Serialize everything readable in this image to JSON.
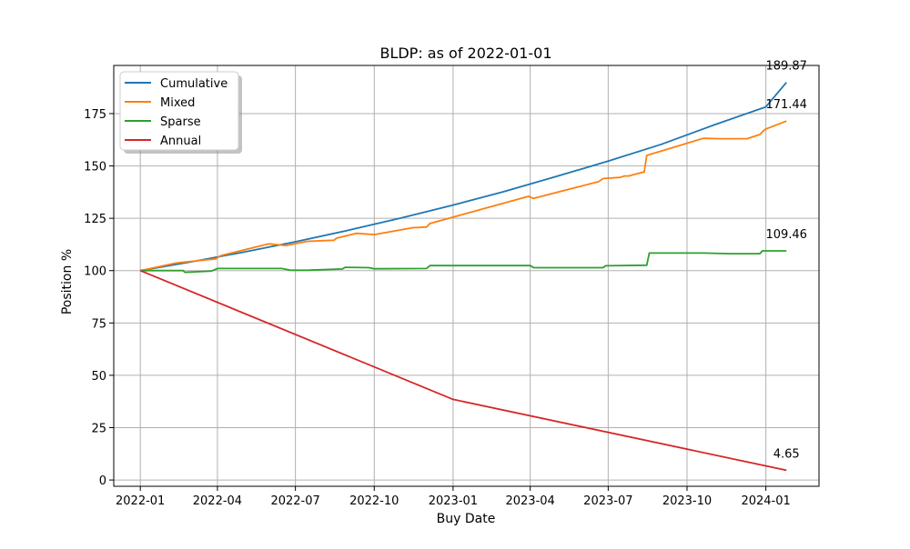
{
  "chart_data": {
    "type": "line",
    "title": "BLDP: as of 2022-01-01",
    "xlabel": "Buy Date",
    "ylabel": "Position %",
    "x_ticks": [
      "2022-01",
      "2022-04",
      "2022-07",
      "2022-10",
      "2023-01",
      "2023-04",
      "2023-07",
      "2023-10",
      "2024-01"
    ],
    "y_ticks": [
      0,
      25,
      50,
      75,
      100,
      125,
      150,
      175
    ],
    "xlim": [
      "2021-12-01",
      "2024-03-03"
    ],
    "ylim": [
      -3,
      198
    ],
    "grid": true,
    "legend": "top-left",
    "series": [
      {
        "name": "Cumulative",
        "color": "#1f77b4",
        "end_label": "189.87",
        "points": [
          [
            "2022-01-01",
            100
          ],
          [
            "2022-03-01",
            104.2
          ],
          [
            "2022-05-01",
            108.8
          ],
          [
            "2022-07-01",
            113.8
          ],
          [
            "2022-09-01",
            119.3
          ],
          [
            "2022-11-01",
            125.1
          ],
          [
            "2023-01-01",
            131.3
          ],
          [
            "2023-03-01",
            137.7
          ],
          [
            "2023-05-01",
            144.9
          ],
          [
            "2023-07-01",
            152.3
          ],
          [
            "2023-09-01",
            160.3
          ],
          [
            "2023-11-01",
            169.5
          ],
          [
            "2024-01-01",
            178.2
          ],
          [
            "2024-01-25",
            189.87
          ]
        ]
      },
      {
        "name": "Mixed",
        "color": "#ff7f0e",
        "end_label": "171.44",
        "points": [
          [
            "2022-01-01",
            100
          ],
          [
            "2022-02-10",
            103.5
          ],
          [
            "2022-02-20",
            104
          ],
          [
            "2022-03-30",
            105.6
          ],
          [
            "2022-04-05",
            107.2
          ],
          [
            "2022-05-31",
            112.8
          ],
          [
            "2022-06-20",
            112
          ],
          [
            "2022-07-15",
            114
          ],
          [
            "2022-08-15",
            114.5
          ],
          [
            "2022-08-18",
            115.5
          ],
          [
            "2022-09-10",
            117.8
          ],
          [
            "2022-10-01",
            117.2
          ],
          [
            "2022-11-15",
            120.5
          ],
          [
            "2022-12-01",
            120.8
          ],
          [
            "2022-12-05",
            122.5
          ],
          [
            "2023-03-30",
            135.5
          ],
          [
            "2023-04-05",
            134.5
          ],
          [
            "2023-06-20",
            142.5
          ],
          [
            "2023-06-25",
            144
          ],
          [
            "2023-07-15",
            144.5
          ],
          [
            "2023-07-20",
            145.2
          ],
          [
            "2023-07-25",
            145.2
          ],
          [
            "2023-08-10",
            147
          ],
          [
            "2023-08-12",
            147
          ],
          [
            "2023-08-15",
            155
          ],
          [
            "2023-10-20",
            163.2
          ],
          [
            "2023-11-10",
            163
          ],
          [
            "2023-12-10",
            163
          ],
          [
            "2023-12-25",
            165
          ],
          [
            "2023-12-31",
            167.5
          ],
          [
            "2024-01-25",
            171.44
          ]
        ]
      },
      {
        "name": "Sparse",
        "color": "#2ca02c",
        "end_label": "109.46",
        "points": [
          [
            "2022-01-01",
            100
          ],
          [
            "2022-02-20",
            100
          ],
          [
            "2022-02-22",
            99.2
          ],
          [
            "2022-03-25",
            99.8
          ],
          [
            "2022-04-01",
            101
          ],
          [
            "2022-06-15",
            101
          ],
          [
            "2022-06-25",
            100.2
          ],
          [
            "2022-07-15",
            100.2
          ],
          [
            "2022-08-25",
            100.8
          ],
          [
            "2022-08-28",
            101.6
          ],
          [
            "2022-09-25",
            101.4
          ],
          [
            "2022-10-01",
            100.9
          ],
          [
            "2022-12-01",
            101
          ],
          [
            "2022-12-05",
            102.4
          ],
          [
            "2023-04-01",
            102.4
          ],
          [
            "2023-04-05",
            101.4
          ],
          [
            "2023-06-25",
            101.4
          ],
          [
            "2023-06-28",
            102.3
          ],
          [
            "2023-08-15",
            102.6
          ],
          [
            "2023-08-18",
            108.4
          ],
          [
            "2023-10-20",
            108.4
          ],
          [
            "2023-11-20",
            108.1
          ],
          [
            "2023-12-25",
            108.1
          ],
          [
            "2023-12-28",
            109.46
          ],
          [
            "2024-01-25",
            109.46
          ]
        ]
      },
      {
        "name": "Annual",
        "color": "#d62728",
        "end_label": "4.65",
        "points": [
          [
            "2022-01-01",
            100
          ],
          [
            "2023-01-01",
            38.5
          ],
          [
            "2024-01-25",
            4.65
          ]
        ]
      }
    ]
  }
}
